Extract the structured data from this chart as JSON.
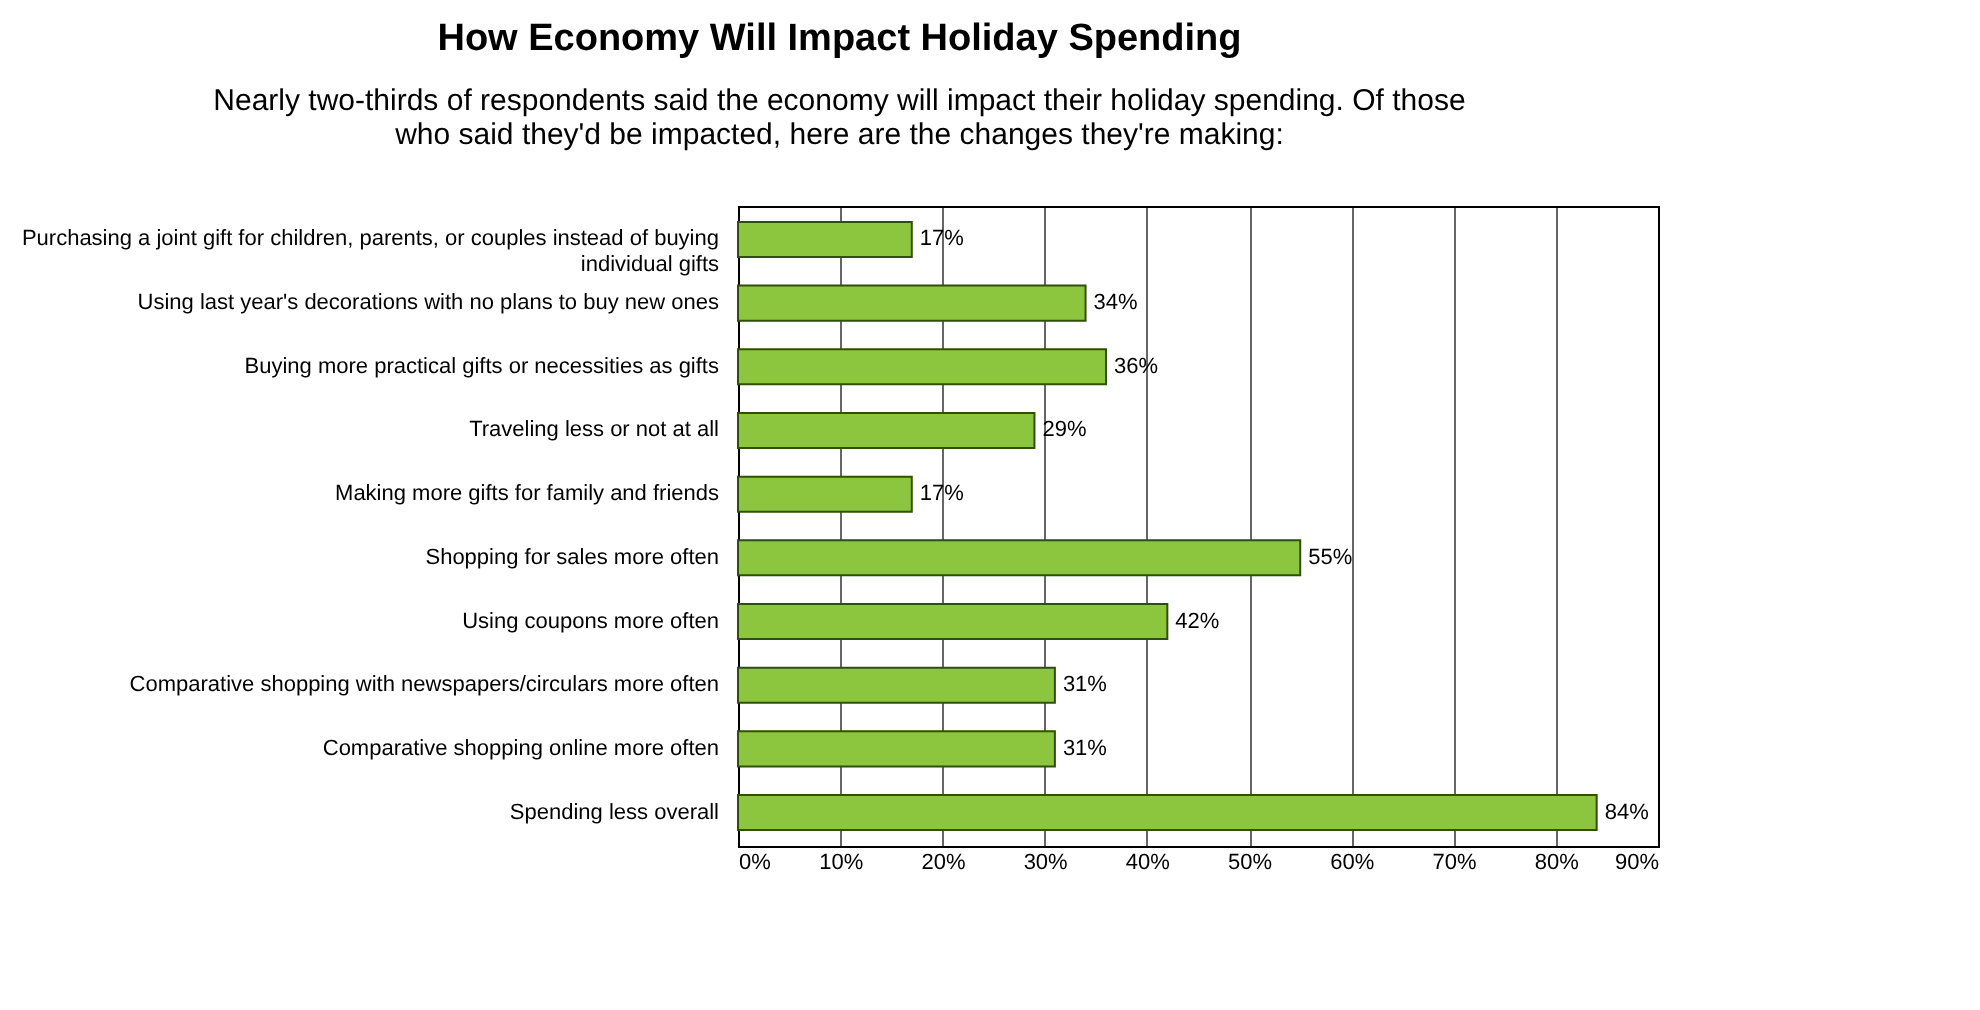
{
  "chart_data": {
    "type": "bar",
    "orientation": "horizontal",
    "title": "How Economy Will Impact Holiday Spending",
    "subtitle": "Nearly two-thirds of respondents said the economy will impact their holiday spending. Of those who said they'd be impacted, here are the changes they're making:",
    "categories": [
      "Purchasing a joint gift for children, parents, or couples instead of buying individual gifts",
      "Using last year's decorations with no plans to buy new ones",
      "Buying more practical gifts or necessities as gifts",
      "Traveling less or not at all",
      "Making more gifts for family and friends",
      "Shopping for sales more often",
      "Using coupons more often",
      "Comparative shopping with newspapers/circulars more often",
      "Comparative shopping online more often",
      "Spending less overall"
    ],
    "values": [
      17,
      34,
      36,
      29,
      17,
      55,
      42,
      31,
      31,
      84
    ],
    "value_labels": [
      "17%",
      "34%",
      "36%",
      "29%",
      "17%",
      "55%",
      "42%",
      "31%",
      "31%",
      "84%"
    ],
    "color": "#8cc63f",
    "xlim": [
      0,
      90
    ],
    "xticks": [
      {
        "value": 0,
        "label": "0%"
      },
      {
        "value": 10,
        "label": "10%"
      },
      {
        "value": 20,
        "label": "20%"
      },
      {
        "value": 30,
        "label": "30%"
      },
      {
        "value": 40,
        "label": "40%"
      },
      {
        "value": 50,
        "label": "50%"
      },
      {
        "value": 60,
        "label": "60%"
      },
      {
        "value": 70,
        "label": "70%"
      },
      {
        "value": 80,
        "label": "80%"
      },
      {
        "value": 90,
        "label": "90%"
      }
    ],
    "grid": "x"
  }
}
